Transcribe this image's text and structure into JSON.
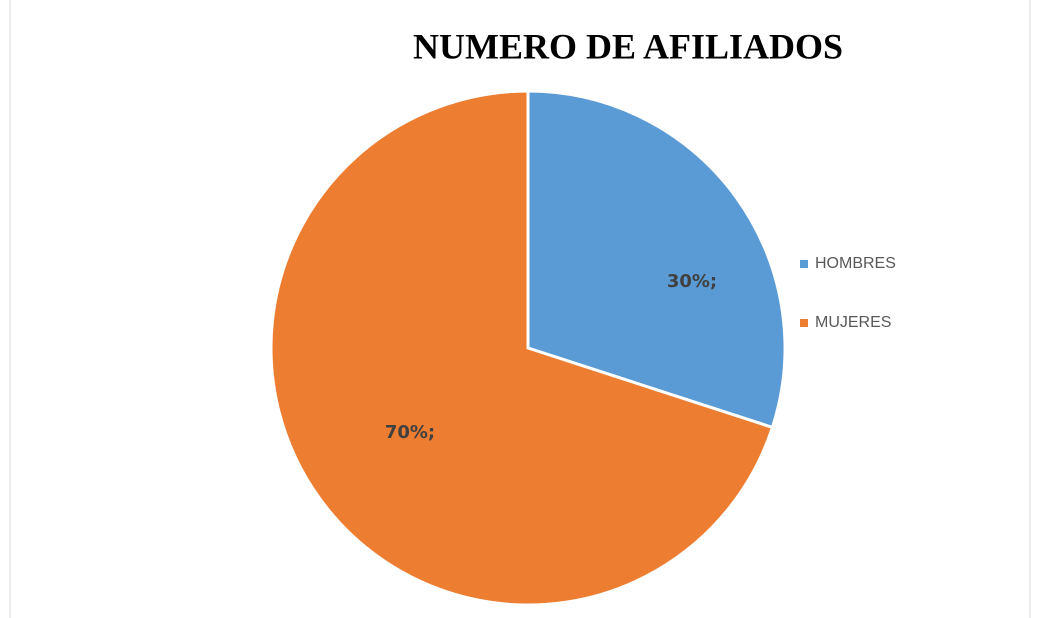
{
  "chart_data": {
    "type": "pie",
    "title": "NUMERO DE AFILIADOS",
    "categories": [
      "HOMBRES",
      "MUJERES"
    ],
    "values": [
      30,
      70
    ],
    "value_labels": [
      "30%;",
      "70%;"
    ],
    "colors": [
      "#5b9bd5",
      "#ed7d31"
    ],
    "legend": "right"
  }
}
